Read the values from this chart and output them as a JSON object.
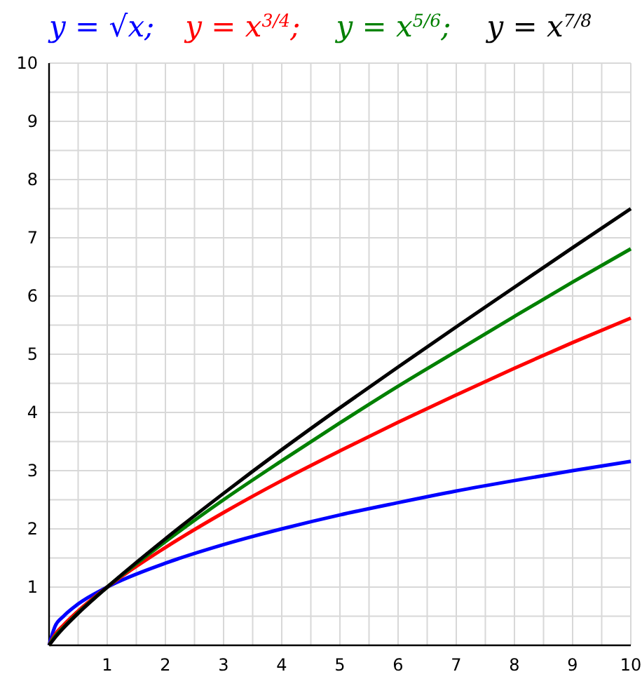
{
  "chart_data": {
    "type": "line",
    "legend": "top",
    "grid": true,
    "marker": "none",
    "line_style": "solid",
    "x": [
      0,
      0.1,
      0.25,
      0.5,
      1,
      2,
      3,
      4,
      5,
      6,
      7,
      8,
      9,
      10
    ],
    "series": [
      {
        "name": "y = √x;",
        "color": "#0000ff",
        "values": [
          0,
          0.32,
          0.5,
          0.71,
          1,
          1.41,
          1.73,
          2,
          2.24,
          2.45,
          2.65,
          2.83,
          3,
          3.16
        ]
      },
      {
        "name": "y = x$^{3/4}$;",
        "color": "#ff0000",
        "values": [
          0,
          0.18,
          0.35,
          0.59,
          1,
          1.68,
          2.28,
          2.83,
          3.34,
          3.83,
          4.3,
          4.76,
          5.2,
          5.62
        ]
      },
      {
        "name": "y = x$^{5/6}$;",
        "color": "#008000",
        "values": [
          0,
          0.15,
          0.31,
          0.56,
          1,
          1.78,
          2.5,
          3.17,
          3.82,
          4.45,
          5.05,
          5.65,
          6.24,
          6.81
        ]
      },
      {
        "name": "y = x$^{7/8}$",
        "color": "#000000",
        "values": [
          0,
          0.13,
          0.3,
          0.55,
          1,
          1.83,
          2.61,
          3.36,
          4.08,
          4.78,
          5.47,
          6.15,
          6.83,
          7.5
        ]
      }
    ],
    "xlim": [
      0,
      10
    ],
    "ylim": [
      0,
      10
    ],
    "xticks": [
      {
        "value": 0.5,
        "label": null
      },
      1,
      {
        "value": 1.5,
        "label": null
      },
      2,
      {
        "value": 2.5,
        "label": null
      },
      3,
      {
        "value": 3.5,
        "label": null
      },
      4,
      {
        "value": 4.5,
        "label": null
      },
      5,
      {
        "value": 5.5,
        "label": null
      },
      6,
      {
        "value": 6.5,
        "label": null
      },
      7,
      {
        "value": 7.5,
        "label": null
      },
      8,
      {
        "value": 8.5,
        "label": null
      },
      9,
      {
        "value": 9.5,
        "label": null
      },
      10
    ],
    "yticks": [
      {
        "value": 0.5,
        "label": null
      },
      1,
      {
        "value": 1.5,
        "label": null
      },
      2,
      {
        "value": 2.5,
        "label": null
      },
      3,
      {
        "value": 3.5,
        "label": null
      },
      4,
      {
        "value": 4.5,
        "label": null
      },
      5,
      {
        "value": 5.5,
        "label": null
      },
      6,
      {
        "value": 6.5,
        "label": null
      },
      7,
      {
        "value": 7.5,
        "label": null
      },
      8,
      {
        "value": 8.5,
        "label": null
      },
      9,
      {
        "value": 9.5,
        "label": null
      },
      10
    ]
  }
}
